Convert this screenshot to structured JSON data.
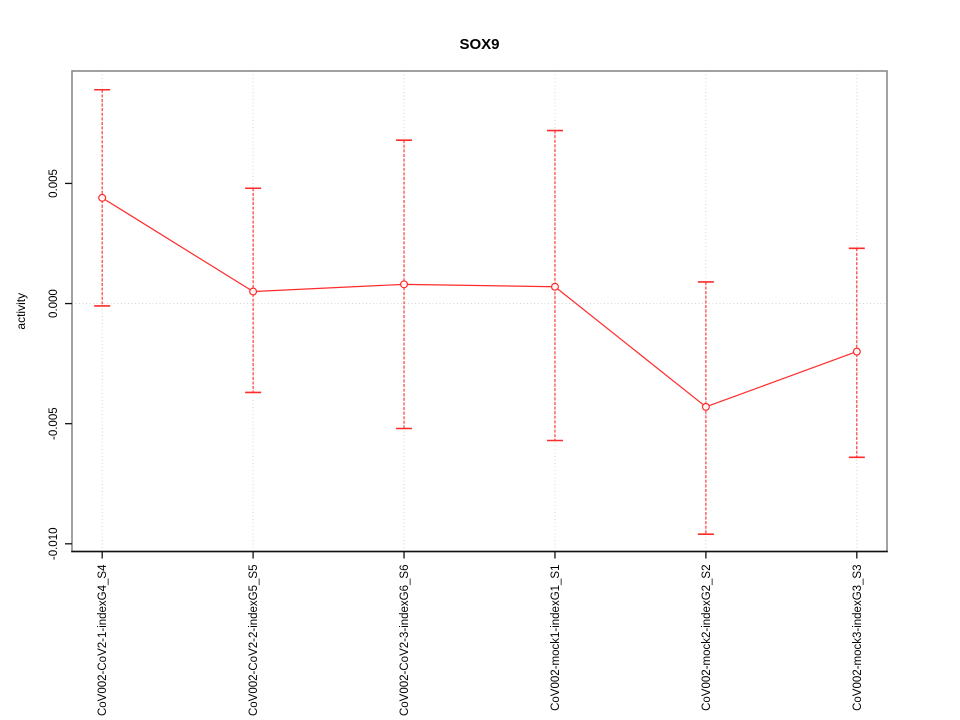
{
  "figure": {
    "title": "SOX9"
  },
  "chart_data": {
    "type": "line",
    "title": "SOX9",
    "xlabel": "",
    "ylabel": "activity",
    "legend_position": "none",
    "marker": "open-circle",
    "categories": [
      "CoV002-CoV2-1-indexG4_S4",
      "CoV002-CoV2-2-indexG5_S5",
      "CoV002-CoV2-3-indexG6_S6",
      "CoV002-mock1-indexG1_S1",
      "CoV002-mock2-indexG2_S2",
      "CoV002-mock3-indexG3_S3"
    ],
    "series": [
      {
        "name": "SOX9 activity",
        "values": [
          0.0044,
          0.0005,
          0.0008,
          0.0007,
          -0.0043,
          -0.002
        ],
        "error_low": [
          -0.0001,
          -0.0037,
          -0.0052,
          -0.0057,
          -0.0096,
          -0.0064
        ],
        "error_high": [
          0.0089,
          0.0048,
          0.0068,
          0.0072,
          0.0009,
          0.0023
        ]
      }
    ],
    "ylim": [
      -0.01032,
      0.00968
    ],
    "yticks": [
      {
        "value": -0.01,
        "label": "-0.010"
      },
      {
        "value": -0.005,
        "label": "-0.005"
      },
      {
        "value": 0.0,
        "label": "0.000"
      },
      {
        "value": 0.005,
        "label": "0.005"
      }
    ],
    "grid": {
      "vertical_gridlines_at_categories": true,
      "horizontal_line_at_zero": true,
      "style": "dotted"
    },
    "colors": {
      "series": "#ff2b2b",
      "gridline": "#d4d4d4",
      "frame": "#8a8a8a",
      "axis": "#111111",
      "text": "#000000",
      "background": "#ffffff"
    }
  }
}
